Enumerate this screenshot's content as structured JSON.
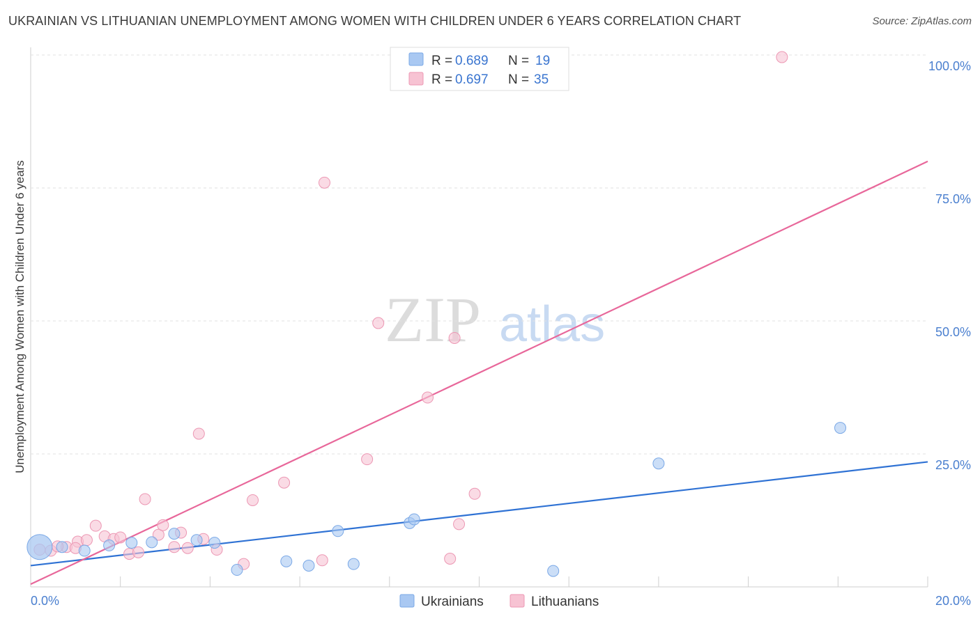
{
  "title": "UKRAINIAN VS LITHUANIAN UNEMPLOYMENT AMONG WOMEN WITH CHILDREN UNDER 6 YEARS CORRELATION CHART",
  "source": "Source: ZipAtlas.com",
  "watermark": {
    "zip": "ZIP",
    "atlas": "atlas"
  },
  "legend": {
    "r_label": "R =",
    "n_label": "N =",
    "items": [
      {
        "r": "0.689",
        "n": "19"
      },
      {
        "r": "0.697",
        "n": "35"
      }
    ]
  },
  "chart_data": {
    "type": "scatter",
    "title": "UKRAINIAN VS LITHUANIAN UNEMPLOYMENT AMONG WOMEN WITH CHILDREN UNDER 6 YEARS CORRELATION CHART",
    "xlabel": "",
    "ylabel": "Unemployment Among Women with Children Under 6 years",
    "xlim": [
      0,
      20
    ],
    "ylim": [
      0,
      100
    ],
    "x_tick_labels": [
      "0.0%",
      "20.0%"
    ],
    "y_tick_labels": [
      "25.0%",
      "50.0%",
      "75.0%",
      "100.0%"
    ],
    "y_ticks": [
      25,
      50,
      75,
      100
    ],
    "series": [
      {
        "name": "Ukrainians",
        "color": "#a9c8f2",
        "stroke": "#7aa8e6",
        "line_color": "#2f72d4",
        "trend": {
          "x": [
            0,
            20
          ],
          "y": [
            4.0,
            23.5
          ]
        },
        "points": [
          {
            "x": 0.2,
            "y": 7.5,
            "big": true
          },
          {
            "x": 0.7,
            "y": 7.5
          },
          {
            "x": 1.2,
            "y": 6.8
          },
          {
            "x": 1.75,
            "y": 7.8
          },
          {
            "x": 2.25,
            "y": 8.3
          },
          {
            "x": 2.7,
            "y": 8.4
          },
          {
            "x": 3.2,
            "y": 10.0
          },
          {
            "x": 3.7,
            "y": 8.8
          },
          {
            "x": 4.1,
            "y": 8.3
          },
          {
            "x": 4.6,
            "y": 3.2
          },
          {
            "x": 5.7,
            "y": 4.8
          },
          {
            "x": 6.2,
            "y": 4.0
          },
          {
            "x": 6.85,
            "y": 10.5
          },
          {
            "x": 7.2,
            "y": 4.3
          },
          {
            "x": 8.45,
            "y": 12.0
          },
          {
            "x": 8.55,
            "y": 12.7
          },
          {
            "x": 11.65,
            "y": 3.0
          },
          {
            "x": 14.0,
            "y": 23.2
          },
          {
            "x": 18.05,
            "y": 29.9
          }
        ]
      },
      {
        "name": "Lithuanians",
        "color": "#f7c3d3",
        "stroke": "#ec97b3",
        "line_color": "#e8679a",
        "trend": {
          "x": [
            0,
            20
          ],
          "y": [
            0.5,
            80.0
          ]
        },
        "points": [
          {
            "x": 0.2,
            "y": 7.0
          },
          {
            "x": 0.45,
            "y": 6.8
          },
          {
            "x": 0.8,
            "y": 7.5
          },
          {
            "x": 1.05,
            "y": 8.5
          },
          {
            "x": 1.25,
            "y": 8.8
          },
          {
            "x": 1.45,
            "y": 11.5
          },
          {
            "x": 1.65,
            "y": 9.5
          },
          {
            "x": 1.85,
            "y": 9.0
          },
          {
            "x": 2.0,
            "y": 9.3
          },
          {
            "x": 2.2,
            "y": 6.2
          },
          {
            "x": 2.4,
            "y": 6.5
          },
          {
            "x": 2.55,
            "y": 16.5
          },
          {
            "x": 2.85,
            "y": 9.8
          },
          {
            "x": 2.95,
            "y": 11.6
          },
          {
            "x": 3.2,
            "y": 7.5
          },
          {
            "x": 3.35,
            "y": 10.2
          },
          {
            "x": 3.5,
            "y": 7.3
          },
          {
            "x": 3.75,
            "y": 28.8
          },
          {
            "x": 3.85,
            "y": 9.0
          },
          {
            "x": 4.15,
            "y": 7.0
          },
          {
            "x": 4.75,
            "y": 4.3
          },
          {
            "x": 4.95,
            "y": 16.3
          },
          {
            "x": 5.65,
            "y": 19.6
          },
          {
            "x": 6.5,
            "y": 5.0
          },
          {
            "x": 6.55,
            "y": 76.0
          },
          {
            "x": 7.5,
            "y": 24.0
          },
          {
            "x": 7.75,
            "y": 49.6
          },
          {
            "x": 8.85,
            "y": 35.6
          },
          {
            "x": 9.35,
            "y": 5.3
          },
          {
            "x": 9.45,
            "y": 46.8
          },
          {
            "x": 9.55,
            "y": 11.8
          },
          {
            "x": 9.9,
            "y": 17.5
          },
          {
            "x": 16.75,
            "y": 99.6
          },
          {
            "x": 0.6,
            "y": 7.6
          },
          {
            "x": 1.0,
            "y": 7.3
          }
        ]
      }
    ],
    "legend_position": "top-center",
    "grid": true
  }
}
